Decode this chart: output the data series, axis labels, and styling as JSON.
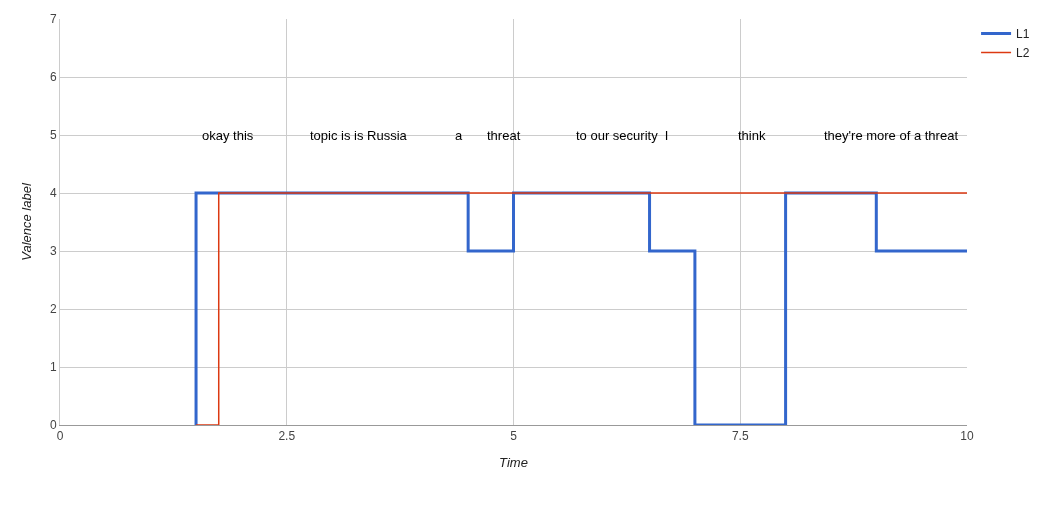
{
  "chart_data": {
    "type": "step",
    "xlabel": "Time",
    "ylabel": "Valence label",
    "xlim": [
      0,
      10
    ],
    "ylim": [
      0,
      7
    ],
    "xticks": [
      0,
      2.5,
      5,
      7.5,
      10
    ],
    "yticks": [
      0,
      1,
      2,
      3,
      4,
      5,
      6,
      7
    ],
    "grid": true,
    "legend": "top right",
    "series": [
      {
        "name": "L1",
        "color": "#3366cc",
        "x": [
          1.5,
          1.5,
          4.5,
          5,
          6.5,
          7,
          8,
          9,
          10
        ],
        "values": [
          0,
          4,
          3,
          4,
          3,
          0,
          4,
          3,
          3
        ]
      },
      {
        "name": "L2",
        "color": "#dc3912",
        "x": [
          1.5,
          1.75,
          10
        ],
        "values": [
          0,
          4,
          4
        ]
      }
    ],
    "annotations": [
      "okay this",
      "topic is is Russia",
      "a",
      "threat",
      "to our security  I",
      "think",
      "they're more of a threat"
    ]
  }
}
